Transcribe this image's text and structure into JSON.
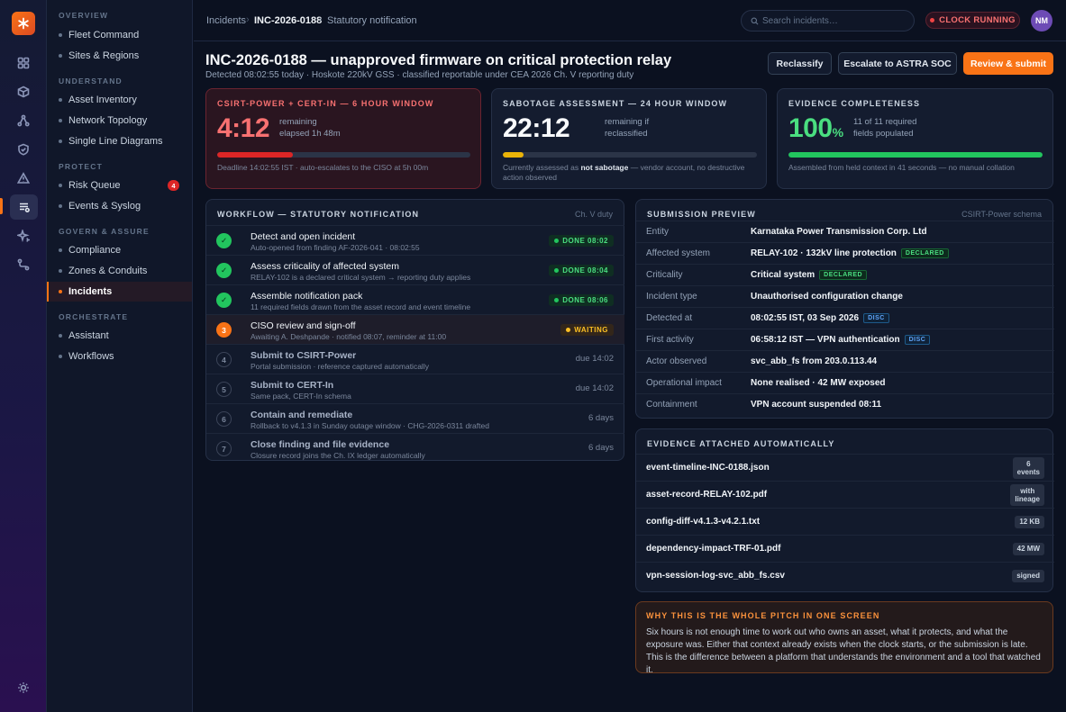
{
  "nav": {
    "sections": [
      {
        "label": "OVERVIEW",
        "items": [
          {
            "label": "Fleet Command"
          },
          {
            "label": "Sites & Regions"
          }
        ]
      },
      {
        "label": "UNDERSTAND",
        "items": [
          {
            "label": "Asset Inventory"
          },
          {
            "label": "Network Topology"
          },
          {
            "label": "Single Line Diagrams"
          }
        ]
      },
      {
        "label": "PROTECT",
        "items": [
          {
            "label": "Risk Queue",
            "badge": "4"
          },
          {
            "label": "Events & Syslog"
          }
        ]
      },
      {
        "label": "GOVERN & ASSURE",
        "items": [
          {
            "label": "Compliance"
          },
          {
            "label": "Zones & Conduits"
          },
          {
            "label": "Incidents"
          }
        ]
      },
      {
        "label": "ORCHESTRATE",
        "items": [
          {
            "label": "Assistant"
          },
          {
            "label": "Workflows"
          }
        ]
      }
    ],
    "active": "Incidents"
  },
  "rail": {
    "logo": "asterisk-logo-icon",
    "icons": [
      "grid-icon",
      "cube-icon",
      "topology-icon",
      "shield-check-icon",
      "warning-icon",
      "incident-list-icon",
      "sparkle-icon",
      "workflow-icon"
    ],
    "bottom_icon": "settings-sun-icon"
  },
  "topbar": {
    "breadcrumb": [
      "Incidents",
      "INC-2026-0188",
      "Statutory notification"
    ],
    "search_placeholder": "Search incidents…",
    "clock_label": "CLOCK RUNNING",
    "avatar_initials": "NM"
  },
  "header": {
    "title": "INC-2026-0188 — unapproved firmware on critical protection relay",
    "subtitle": "Detected 08:02:55 today · Hoskote 220kV GSS · classified reportable under CEA 2026 Ch. V reporting duty",
    "buttons": {
      "reclassify": "Reclassify",
      "escalate": "Escalate to ASTRA SOC",
      "review": "Review & submit"
    }
  },
  "cards": {
    "csirt": {
      "title": "CSIRT-POWER + CERT-IN — 6 HOUR WINDOW",
      "value": "4:12",
      "aside_1": "remaining",
      "aside_2": "elapsed 1h 48m",
      "progress": 0.3,
      "foot": "Deadline 14:02:55 IST · auto-escalates to the CISO at 5h 00m",
      "color": "#dc2626"
    },
    "sabotage": {
      "title": "SABOTAGE ASSESSMENT — 24 HOUR WINDOW",
      "value": "22:12",
      "aside_1": "remaining if",
      "aside_2": "reclassified",
      "progress": 0.08,
      "foot_pre": "Currently assessed as ",
      "foot_strong": "not sabotage",
      "foot_post": " — vendor account, no destructive action observed",
      "color": "#eab308"
    },
    "evidence": {
      "title": "EVIDENCE COMPLETENESS",
      "value": "100",
      "unit": "%",
      "aside_1": "11 of 11 required",
      "aside_2": "fields populated",
      "progress": 1.0,
      "foot": "Assembled from held context in 41 seconds — no manual collation",
      "color": "#22c55e"
    }
  },
  "workflow": {
    "title": "WORKFLOW — STATUTORY NOTIFICATION",
    "aside": "Ch. V duty",
    "steps": [
      {
        "title": "Detect and open incident",
        "sub": "Auto-opened from finding AF-2026-041 · 08:02:55",
        "status": "DONE 08:02",
        "state": "done",
        "icon": "✓"
      },
      {
        "title": "Assess criticality of affected system",
        "sub": "RELAY-102 is a declared critical system → reporting duty applies",
        "status": "DONE 08:04",
        "state": "done",
        "icon": "✓"
      },
      {
        "title": "Assemble notification pack",
        "sub": "11 required fields drawn from the asset record and event timeline",
        "status": "DONE 08:06",
        "state": "done",
        "icon": "✓"
      },
      {
        "title": "CISO review and sign-off",
        "sub": "Awaiting A. Deshpande · notified 08:07, reminder at 11:00",
        "status": "WAITING",
        "state": "current",
        "icon": "3"
      },
      {
        "title": "Submit to CSIRT-Power",
        "sub": "Portal submission · reference captured automatically",
        "status": "due 14:02",
        "state": "pending",
        "icon": "4"
      },
      {
        "title": "Submit to CERT-In",
        "sub": "Same pack, CERT-In schema",
        "status": "due 14:02",
        "state": "pending",
        "icon": "5"
      },
      {
        "title": "Contain and remediate",
        "sub": "Rollback to v4.1.3 in Sunday outage window · CHG-2026-0311 drafted",
        "status": "6 days",
        "state": "pending",
        "icon": "6"
      },
      {
        "title": "Close finding and file evidence",
        "sub": "Closure record joins the Ch. IX ledger automatically",
        "status": "6 days",
        "state": "pending",
        "icon": "7"
      }
    ]
  },
  "submission": {
    "title": "SUBMISSION PREVIEW",
    "aside": "CSIRT-Power schema",
    "rows": [
      {
        "label": "Entity",
        "value": "Karnataka Power Transmission Corp. Ltd",
        "tag": ""
      },
      {
        "label": "Affected system",
        "value": "RELAY-102 · 132kV line protection",
        "tag": "DECLARED",
        "tag_type": "declared"
      },
      {
        "label": "Criticality",
        "value": "Critical system",
        "tag": "DECLARED",
        "tag_type": "declared"
      },
      {
        "label": "Incident type",
        "value": "Unauthorised configuration change",
        "tag": ""
      },
      {
        "label": "Detected at",
        "value": "08:02:55 IST, 03 Sep 2026",
        "tag": "DISC",
        "tag_type": "disc"
      },
      {
        "label": "First activity",
        "value": "06:58:12 IST — VPN authentication",
        "tag": "DISC",
        "tag_type": "disc"
      },
      {
        "label": "Actor observed",
        "value": "svc_abb_fs from 203.0.113.44",
        "tag": ""
      },
      {
        "label": "Operational impact",
        "value": "None realised · 42 MW exposed",
        "tag": ""
      },
      {
        "label": "Containment",
        "value": "VPN account suspended 08:11",
        "tag": ""
      }
    ]
  },
  "evidence": {
    "title": "EVIDENCE ATTACHED AUTOMATICALLY",
    "items": [
      {
        "name": "event-timeline-INC-0188.json",
        "tag_1": "6",
        "tag_2": "events"
      },
      {
        "name": "asset-record-RELAY-102.pdf",
        "tag_1": "with",
        "tag_2": "lineage"
      },
      {
        "name": "config-diff-v4.1.3-v4.2.1.txt",
        "tag_1": "12 KB",
        "tag_2": ""
      },
      {
        "name": "dependency-impact-TRF-01.pdf",
        "tag_1": "42 MW",
        "tag_2": ""
      },
      {
        "name": "vpn-session-log-svc_abb_fs.csv",
        "tag_1": "signed",
        "tag_2": ""
      }
    ]
  },
  "note": {
    "title": "WHY THIS IS THE WHOLE PITCH IN ONE SCREEN",
    "body": "Six hours is not enough time to work out who owns an asset, what it protects, and what the exposure was. Either that context already exists when the clock starts, or the submission is late. This is the difference between a platform that understands the environment and a tool that watched it."
  }
}
